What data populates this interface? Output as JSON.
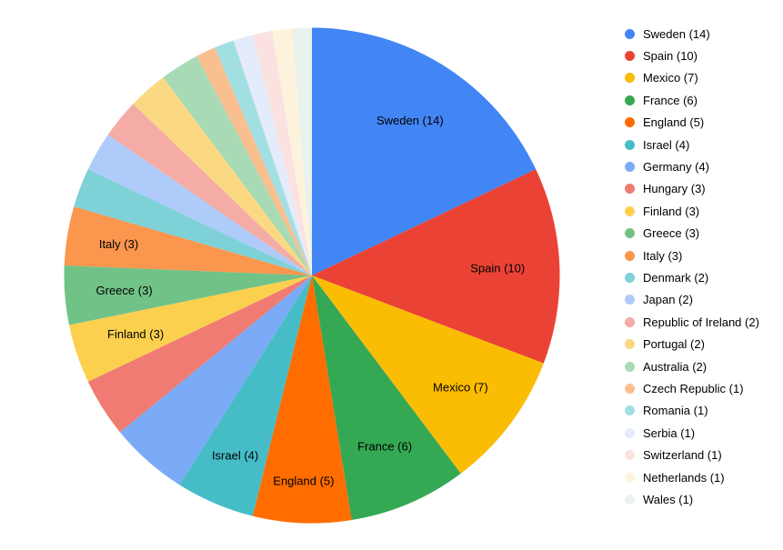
{
  "background_color": "#ffffff",
  "chart_data": {
    "type": "pie",
    "title": "",
    "total": 78,
    "start_angle_deg": 0,
    "direction": "clockwise",
    "legend_position": "right",
    "slice_label_color": "#000000",
    "slice_label_format": "name (value)",
    "slices": [
      {
        "name": "Sweden",
        "value": 14,
        "color": "#4285F4",
        "legend_label": "Sweden (14)",
        "slice_label": "Sweden (14)",
        "label_inside": true,
        "label_r": 0.74
      },
      {
        "name": "Spain",
        "value": 10,
        "color": "#EA4335",
        "legend_label": "Spain (10)",
        "slice_label": "Spain (10)",
        "label_inside": true,
        "label_r": 0.75
      },
      {
        "name": "Mexico",
        "value": 7,
        "color": "#FBBC04",
        "legend_label": "Mexico (7)",
        "slice_label": "Mexico (7)",
        "label_inside": true,
        "label_r": 0.75
      },
      {
        "name": "France",
        "value": 6,
        "color": "#34A853",
        "legend_label": "France (6)",
        "slice_label": "France (6)",
        "label_inside": true,
        "label_r": 0.75
      },
      {
        "name": "England",
        "value": 5,
        "color": "#FF6D01",
        "legend_label": "England (5)",
        "slice_label": "England (5)",
        "label_inside": true,
        "label_r": 0.83
      },
      {
        "name": "Israel",
        "value": 4,
        "color": "#46BDC6",
        "legend_label": "Israel (4)",
        "slice_label": "Israel (4)",
        "label_inside": true,
        "label_r": 0.79
      },
      {
        "name": "Germany",
        "value": 4,
        "color": "#7BAAF7",
        "legend_label": "Germany (4)",
        "slice_label": "Germany (4)",
        "label_inside": false,
        "label_r": 0.75
      },
      {
        "name": "Hungary",
        "value": 3,
        "color": "#F07B72",
        "legend_label": "Hungary (3)",
        "slice_label": "Hungary (3)",
        "label_inside": false,
        "label_r": 0.75
      },
      {
        "name": "Finland",
        "value": 3,
        "color": "#FCD04F",
        "legend_label": "Finland (3)",
        "slice_label": "Finland (3)",
        "label_inside": true,
        "label_r": 0.75
      },
      {
        "name": "Greece",
        "value": 3,
        "color": "#71C287",
        "legend_label": "Greece (3)",
        "slice_label": "Greece (3)",
        "label_inside": true,
        "label_r": 0.76
      },
      {
        "name": "Italy",
        "value": 3,
        "color": "#FA964D",
        "legend_label": "Italy (3)",
        "slice_label": "Italy (3)",
        "label_inside": true,
        "label_r": 0.79
      },
      {
        "name": "Denmark",
        "value": 2,
        "color": "#7ED1D7",
        "legend_label": "Denmark (2)",
        "slice_label": "Denmark (2)",
        "label_inside": false,
        "label_r": 0.75
      },
      {
        "name": "Japan",
        "value": 2,
        "color": "#AECBFA",
        "legend_label": "Japan (2)",
        "slice_label": "Japan (2)",
        "label_inside": false,
        "label_r": 0.75
      },
      {
        "name": "Republic of Ireland",
        "value": 2,
        "color": "#F5ABA6",
        "legend_label": "Republic of Ireland (2)",
        "slice_label": "Republic of Ireland (2)",
        "label_inside": false,
        "label_r": 0.75
      },
      {
        "name": "Portugal",
        "value": 2,
        "color": "#FBD983",
        "legend_label": "Portugal (2)",
        "slice_label": "Portugal (2)",
        "label_inside": false,
        "label_r": 0.75
      },
      {
        "name": "Australia",
        "value": 2,
        "color": "#A8DAB5",
        "legend_label": "Australia (2)",
        "slice_label": "Australia (2)",
        "label_inside": false,
        "label_r": 0.75
      },
      {
        "name": "Czech Republic",
        "value": 1,
        "color": "#F9BF8F",
        "legend_label": "Czech Republic (1)",
        "slice_label": "Czech Republic (1)",
        "label_inside": false,
        "label_r": 0.75
      },
      {
        "name": "Romania",
        "value": 1,
        "color": "#A2DFE3",
        "legend_label": "Romania (1)",
        "slice_label": "Romania (1)",
        "label_inside": false,
        "label_r": 0.75
      },
      {
        "name": "Serbia",
        "value": 1,
        "color": "#E4EBFA",
        "legend_label": "Serbia (1)",
        "slice_label": "Serbia (1)",
        "label_inside": false,
        "label_r": 0.75
      },
      {
        "name": "Switzerland",
        "value": 1,
        "color": "#FBE2E0",
        "legend_label": "Switzerland (1)",
        "slice_label": "Switzerland (1)",
        "label_inside": false,
        "label_r": 0.75
      },
      {
        "name": "Netherlands",
        "value": 1,
        "color": "#FDF3DC",
        "legend_label": "Netherlands (1)",
        "slice_label": "Netherlands (1)",
        "label_inside": false,
        "label_r": 0.75
      },
      {
        "name": "Wales",
        "value": 1,
        "color": "#E9F2EB",
        "legend_label": "Wales (1)",
        "slice_label": "Wales (1)",
        "label_inside": false,
        "label_r": 0.75
      }
    ]
  }
}
